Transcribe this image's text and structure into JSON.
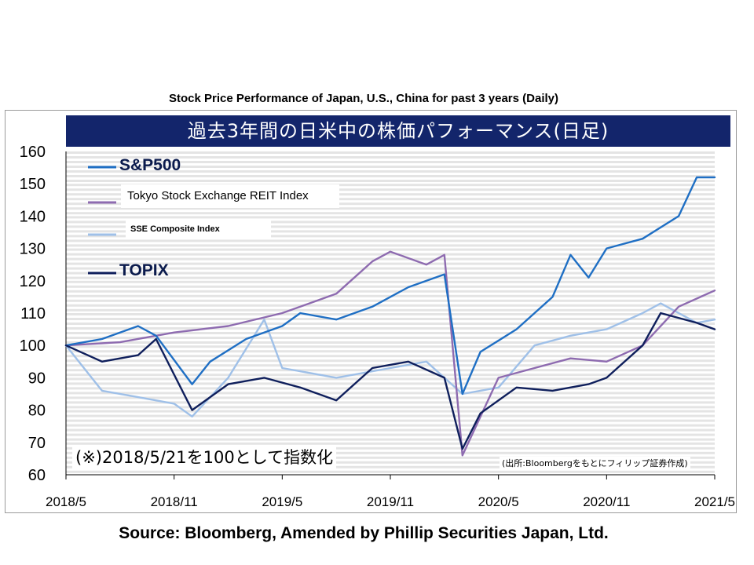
{
  "title": "Stock Price Performance of Japan, U.S., China for past 3 years (Daily)",
  "banner_jp": "過去3年間の日米中の株価パフォーマンス(日足)",
  "note_jp": "(※)2018/5/21を100として指数化",
  "source_note_jp": "(出所:Bloombergをもとにフィリップ証券作成)",
  "source": "Source: Bloomberg, Amended by Phillip Securities Japan, Ltd.",
  "colors": {
    "sp500": "#1f6fc4",
    "reit": "#8e6bb0",
    "sse": "#9fc0e8",
    "topix": "#0f1f5c",
    "banner": "#13256b"
  },
  "chart_data": {
    "type": "line",
    "ylim": [
      60,
      160
    ],
    "yticks": [
      "60",
      "70",
      "80",
      "90",
      "100",
      "110",
      "120",
      "130",
      "140",
      "150",
      "160"
    ],
    "xlim": [
      "2018/5",
      "2021/5"
    ],
    "xticks": [
      "2018/5",
      "2018/11",
      "2019/5",
      "2019/11",
      "2020/5",
      "2020/11",
      "2021/5"
    ],
    "grid": true,
    "legend_position": "top-left",
    "series": [
      {
        "name": "S&P500",
        "color": "#1f6fc4",
        "x": [
          "2018/5",
          "2018/7",
          "2018/9",
          "2018/10",
          "2018/12",
          "2019/1",
          "2019/3",
          "2019/5",
          "2019/6",
          "2019/8",
          "2019/10",
          "2019/12",
          "2020/2",
          "2020/3",
          "2020/4",
          "2020/6",
          "2020/8",
          "2020/9",
          "2020/10",
          "2020/11",
          "2021/1",
          "2021/3",
          "2021/4",
          "2021/5"
        ],
        "y": [
          100,
          102,
          106,
          103,
          88,
          95,
          102,
          106,
          110,
          108,
          112,
          118,
          122,
          85,
          98,
          105,
          115,
          128,
          121,
          130,
          133,
          140,
          152,
          152
        ]
      },
      {
        "name": "Tokyo Stock Exchange REIT Index",
        "color": "#8e6bb0",
        "x": [
          "2018/5",
          "2018/8",
          "2018/11",
          "2019/2",
          "2019/5",
          "2019/8",
          "2019/10",
          "2019/11",
          "2020/1",
          "2020/2",
          "2020/3",
          "2020/5",
          "2020/7",
          "2020/9",
          "2020/11",
          "2021/1",
          "2021/3",
          "2021/5"
        ],
        "y": [
          100,
          101,
          104,
          106,
          110,
          116,
          126,
          129,
          125,
          128,
          66,
          90,
          93,
          96,
          95,
          100,
          112,
          117
        ]
      },
      {
        "name": "SSE Composite Index",
        "color": "#9fc0e8",
        "x": [
          "2018/5",
          "2018/7",
          "2018/9",
          "2018/11",
          "2018/12",
          "2019/2",
          "2019/4",
          "2019/5",
          "2019/8",
          "2019/11",
          "2020/1",
          "2020/3",
          "2020/5",
          "2020/7",
          "2020/9",
          "2020/11",
          "2021/1",
          "2021/2",
          "2021/4",
          "2021/5"
        ],
        "y": [
          100,
          86,
          84,
          82,
          78,
          90,
          108,
          93,
          90,
          93,
          95,
          85,
          87,
          100,
          103,
          105,
          110,
          113,
          107,
          108
        ]
      },
      {
        "name": "TOPIX",
        "color": "#0f1f5c",
        "x": [
          "2018/5",
          "2018/7",
          "2018/9",
          "2018/10",
          "2018/12",
          "2019/2",
          "2019/4",
          "2019/6",
          "2019/8",
          "2019/10",
          "2019/12",
          "2020/2",
          "2020/3",
          "2020/4",
          "2020/6",
          "2020/8",
          "2020/10",
          "2020/11",
          "2021/1",
          "2021/2",
          "2021/4",
          "2021/5"
        ],
        "y": [
          100,
          95,
          97,
          102,
          80,
          88,
          90,
          87,
          83,
          93,
          95,
          90,
          68,
          79,
          87,
          86,
          88,
          90,
          100,
          110,
          107,
          105
        ]
      }
    ]
  }
}
